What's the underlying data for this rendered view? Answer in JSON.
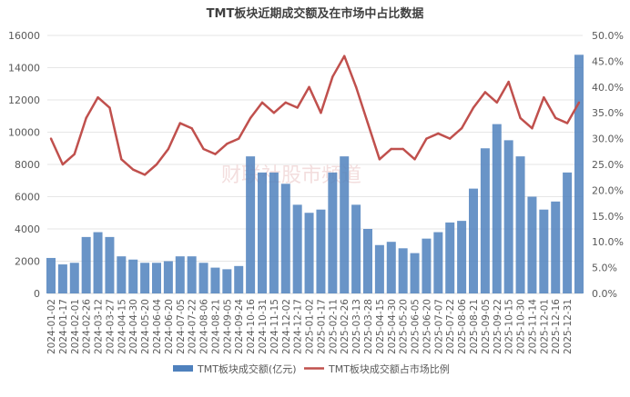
{
  "chart_data": {
    "type": "bar+line",
    "title": "TMT板块近期成交额及在市场中占比数据",
    "watermark": "财联社股市频道",
    "categories": [
      "2024-01-02",
      "2024-01-17",
      "2024-02-01",
      "2024-02-26",
      "2024-03-12",
      "2024-03-27",
      "2024-04-15",
      "2024-04-30",
      "2024-05-20",
      "2024-06-04",
      "2024-06-20",
      "2024-07-05",
      "2024-07-22",
      "2024-08-06",
      "2024-08-21",
      "2024-09-05",
      "2024-09-24",
      "2024-10-16",
      "2024-10-31",
      "2024-11-15",
      "2024-12-02",
      "2024-12-17",
      "2025-01-02",
      "2025-01-17",
      "2025-02-11",
      "2025-02-26",
      "2025-03-13",
      "2025-03-28",
      "2025-04-15",
      "2025-04-30",
      "2025-05-20",
      "2025-06-05",
      "2025-06-20",
      "2025-07-07",
      "2025-07-22",
      "2025-08-06",
      "2025-08-21",
      "2025-09-05",
      "2025-09-22",
      "2025-10-15",
      "2025-10-30",
      "2025-11-14",
      "2025-12-01",
      "2025-12-16",
      "2025-12-31",
      ""
    ],
    "series": [
      {
        "name": "TMT板块成交额(亿元)",
        "type": "bar",
        "axis": "left",
        "color": "#4f81bd",
        "values": [
          2200,
          1800,
          1900,
          3500,
          3800,
          3500,
          2300,
          2100,
          1900,
          1900,
          2000,
          2300,
          2300,
          1900,
          1600,
          1500,
          1700,
          8500,
          7500,
          7500,
          6800,
          5500,
          5000,
          5200,
          7500,
          8500,
          5500,
          4000,
          3000,
          3200,
          2800,
          2500,
          3400,
          3800,
          4400,
          4500,
          6500,
          9000,
          10500,
          9500,
          8500,
          6000,
          5200,
          5700,
          7500,
          14800
        ]
      },
      {
        "name": "TMT板块成交额占市场比例",
        "type": "line",
        "axis": "right",
        "color": "#c0504d",
        "values": [
          30,
          25,
          27,
          34,
          38,
          36,
          26,
          24,
          23,
          25,
          28,
          33,
          32,
          28,
          27,
          29,
          30,
          34,
          37,
          35,
          37,
          36,
          40,
          35,
          42,
          46,
          40,
          33,
          26,
          28,
          28,
          26,
          30,
          31,
          30,
          32,
          36,
          39,
          37,
          41,
          34,
          32,
          38,
          34,
          33,
          37
        ]
      }
    ],
    "y_left": {
      "min": 0,
      "max": 16000,
      "ticks": [
        "0",
        "2000",
        "4000",
        "6000",
        "8000",
        "10000",
        "12000",
        "14000",
        "16000"
      ]
    },
    "y_right": {
      "min": 0,
      "max": 50,
      "ticks": [
        "0.0%",
        "5.0%",
        "10.0%",
        "15.0%",
        "20.0%",
        "25.0%",
        "30.0%",
        "35.0%",
        "40.0%",
        "45.0%",
        "50.0%"
      ]
    },
    "grid": true,
    "legend": "bottom"
  }
}
